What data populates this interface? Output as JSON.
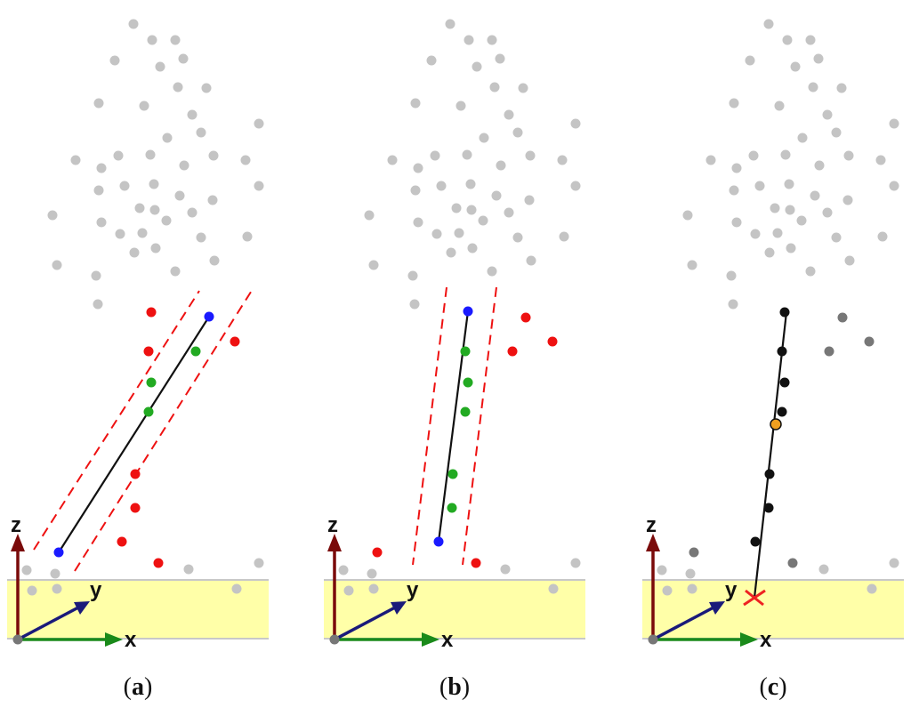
{
  "colors": {
    "background_point": "#c4c4c4",
    "outlier": "#ee1111",
    "inlier": "#22aa22",
    "sample": "#1a1aff",
    "fitted_point": "#111111",
    "rejected_point": "#777777",
    "center_point": "#f0a020",
    "ground_plane": "#ffffa8",
    "axis_x": "#1a8a1a",
    "axis_y": "#1a1a7a",
    "axis_z": "#7a0a0a",
    "band": "#ee1111",
    "intersection_mark": "#ee2222"
  },
  "axes": {
    "x": "x",
    "y": "y",
    "z": "z"
  },
  "captions": [
    {
      "open": "(",
      "letter": "a",
      "close": ")"
    },
    {
      "open": "(",
      "letter": "b",
      "close": ")"
    },
    {
      "open": "(",
      "letter": "c",
      "close": ")"
    }
  ],
  "icons": {
    "intersection": "cross-mark-icon"
  }
}
